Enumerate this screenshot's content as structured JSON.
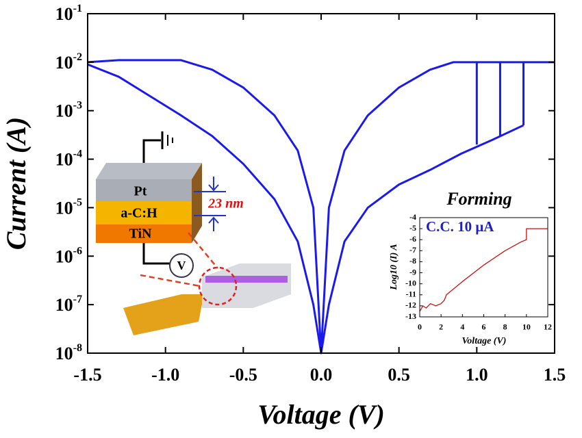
{
  "chart_data": [
    {
      "type": "line",
      "xlabel": "Voltage (V)",
      "ylabel": "Current (A)",
      "yscale": "log",
      "xlim": [
        -1.5,
        1.5
      ],
      "ylim": [
        1e-08,
        0.1
      ],
      "xticks": [
        -1.5,
        {
          "value": -1,
          "label": "-1.0"
        },
        -0.5,
        {
          "value": 0,
          "label": "0.0"
        },
        0.5,
        {
          "value": 1,
          "label": "1.0"
        },
        1.5
      ],
      "yticks": [
        {
          "value": 1e-08,
          "label": "10-8"
        },
        {
          "value": 1e-07,
          "label": "10-7"
        },
        {
          "value": 1e-06,
          "label": "10-6"
        },
        {
          "value": 1e-05,
          "label": "10-5"
        },
        {
          "value": 0.0001,
          "label": "10-4"
        },
        {
          "value": 0.001,
          "label": "10-3"
        },
        {
          "value": 0.01,
          "label": "10-2"
        },
        {
          "value": 0.1,
          "label": "10-1"
        }
      ],
      "annotations": [
        "Pt",
        "a-C:H",
        "TiN",
        "V",
        "23 nm"
      ],
      "series": [
        {
          "color": "#1a1aee",
          "x": [
            -1.5,
            -1.3,
            -1.1,
            -0.9,
            -0.7,
            -0.5,
            -0.3,
            -0.15,
            -0.05,
            0,
            0.05,
            0.15,
            0.3,
            0.5,
            0.7,
            0.85,
            1.0,
            1.5
          ],
          "values": [
            0.01,
            0.011,
            0.011,
            0.011,
            0.007,
            0.003,
            0.0008,
            0.00015,
            1e-05,
            1e-08,
            1e-05,
            0.00015,
            0.0008,
            0.003,
            0.007,
            0.01,
            0.01,
            0.01
          ]
        },
        {
          "color": "#1a1aee",
          "x": [
            -1.5,
            -1.3,
            -1.1,
            -0.9,
            -0.7,
            -0.5,
            -0.3,
            -0.15,
            -0.05,
            0,
            0.05,
            0.15,
            0.3,
            0.5,
            0.7,
            0.9,
            1.1,
            1.3
          ],
          "values": [
            0.009,
            0.005,
            0.002,
            0.0008,
            0.0003,
            8e-05,
            1.5e-05,
            2e-06,
            1e-07,
            1e-08,
            1e-07,
            2e-06,
            1e-05,
            3e-05,
            6e-05,
            0.00013,
            0.00025,
            0.0005
          ]
        },
        {
          "color": "#1a1aee",
          "x": [
            1.0,
            1.0
          ],
          "values": [
            0.0002,
            0.01
          ]
        },
        {
          "color": "#1a1aee",
          "x": [
            1.15,
            1.15
          ],
          "values": [
            0.0003,
            0.01
          ]
        },
        {
          "color": "#1a1aee",
          "x": [
            1.3,
            1.3
          ],
          "values": [
            0.0005,
            0.01
          ]
        }
      ]
    },
    {
      "type": "line",
      "title": "Forming",
      "xlabel": "Voltage (V)",
      "ylabel": "Log10 (I) A",
      "xlim": [
        0,
        12
      ],
      "ylim": [
        -13,
        -4
      ],
      "xticks": [
        0,
        2,
        4,
        6,
        8,
        10,
        12
      ],
      "yticks": [
        -13,
        -12,
        -11,
        -10,
        -9,
        -8,
        -7,
        -6,
        -5,
        -4
      ],
      "annotations": [
        "C.C. 10 μA"
      ],
      "series": [
        {
          "color": "#cc1111",
          "x": [
            0,
            0.3,
            0.6,
            1,
            1.5,
            2,
            2.3,
            2.5,
            4,
            6,
            8,
            9.5,
            10,
            10,
            12
          ],
          "values": [
            -12.5,
            -12,
            -12.2,
            -11.8,
            -12,
            -11.8,
            -11.5,
            -11,
            -9.8,
            -8.3,
            -7,
            -6.2,
            -6,
            -5,
            -5
          ]
        }
      ]
    }
  ]
}
